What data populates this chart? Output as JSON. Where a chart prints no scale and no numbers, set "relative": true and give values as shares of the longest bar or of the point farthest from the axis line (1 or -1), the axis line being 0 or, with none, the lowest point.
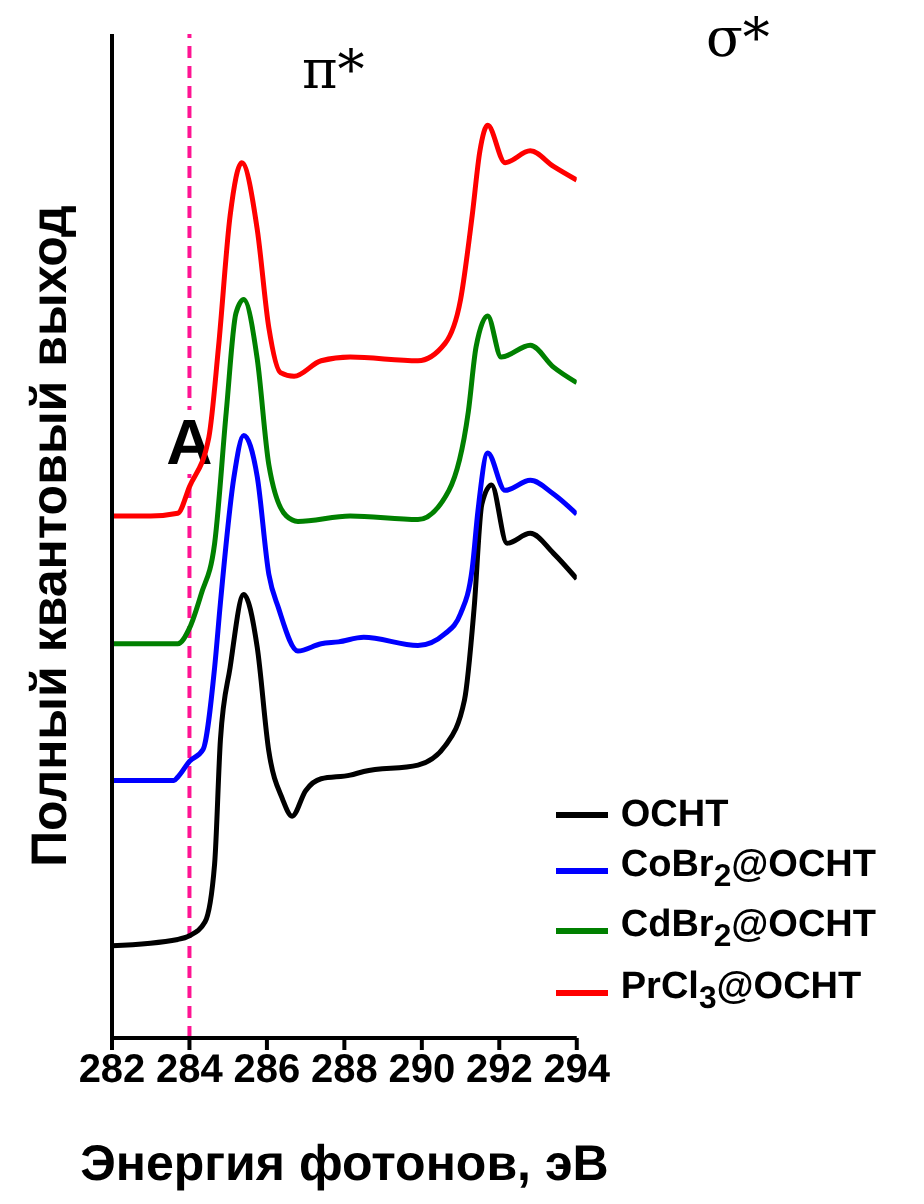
{
  "chart_data": {
    "type": "line",
    "xlabel": "Энергия фотонов, эВ",
    "ylabel": "Полный квантовый выход",
    "relative": true,
    "xlim": [
      282,
      294
    ],
    "xticks": [
      282,
      284,
      286,
      288,
      290,
      292,
      294
    ],
    "legend": "bottom right",
    "marker": "none",
    "line_style": "solid",
    "series": [
      {
        "name": "OCHT",
        "color": "#000000",
        "x": [
          282,
          283.7,
          284.0,
          284.4,
          284.65,
          284.8,
          285.05,
          285.4,
          285.75,
          286.05,
          286.4,
          286.65,
          287.0,
          287.4,
          288.15,
          288.5,
          289.9,
          290.6,
          291.1,
          291.35,
          291.55,
          291.8,
          292.2,
          292.8,
          293.4,
          294
        ],
        "values": [
          0.101,
          0.108,
          0.112,
          0.127,
          0.191,
          0.327,
          0.406,
          0.486,
          0.428,
          0.314,
          0.262,
          0.243,
          0.271,
          0.284,
          0.288,
          0.292,
          0.299,
          0.32,
          0.37,
          0.471,
          0.585,
          0.606,
          0.542,
          0.553,
          0.531,
          0.503
        ]
      },
      {
        "name": "CoBr$_{2}$@OCHT",
        "color": "#0000ff",
        "x": [
          282,
          283.6,
          283.7,
          284.0,
          284.35,
          284.65,
          284.8,
          285.15,
          285.4,
          285.75,
          286.05,
          286.3,
          286.8,
          287.4,
          287.85,
          288.5,
          289.9,
          290.6,
          291.0,
          291.3,
          291.45,
          291.7,
          292.15,
          292.8,
          293.4,
          294
        ],
        "values": [
          0.282,
          0.282,
          0.286,
          0.303,
          0.316,
          0.406,
          0.477,
          0.615,
          0.66,
          0.615,
          0.508,
          0.471,
          0.424,
          0.432,
          0.434,
          0.439,
          0.43,
          0.443,
          0.465,
          0.514,
          0.578,
          0.641,
          0.6,
          0.611,
          0.596,
          0.574
        ]
      },
      {
        "name": "CdBr$_{2}$@OCHT",
        "color": "#008000",
        "x": [
          282,
          283.7,
          284.0,
          284.3,
          284.65,
          284.95,
          285.2,
          285.4,
          285.75,
          286.05,
          286.5,
          286.8,
          288.15,
          289.9,
          290.7,
          291.2,
          291.4,
          291.7,
          292.05,
          292.8,
          293.4,
          294
        ],
        "values": [
          0.432,
          0.432,
          0.449,
          0.486,
          0.542,
          0.686,
          0.794,
          0.809,
          0.744,
          0.628,
          0.572,
          0.566,
          0.572,
          0.568,
          0.6,
          0.686,
          0.757,
          0.791,
          0.746,
          0.759,
          0.735,
          0.718
        ]
      },
      {
        "name": "PrCl$_{3}$@OCHT",
        "color": "#ff0000",
        "x": [
          282,
          283.0,
          283.7,
          284.0,
          284.5,
          284.75,
          285.05,
          285.35,
          285.75,
          286.05,
          286.35,
          286.7,
          287.4,
          288.15,
          289.9,
          290.6,
          291.0,
          291.3,
          291.5,
          291.7,
          292.15,
          292.8,
          293.4,
          294
        ],
        "values": [
          0.572,
          0.572,
          0.575,
          0.604,
          0.658,
          0.757,
          0.901,
          0.959,
          0.886,
          0.778,
          0.729,
          0.725,
          0.742,
          0.746,
          0.742,
          0.761,
          0.809,
          0.901,
          0.972,
          1.0,
          0.959,
          0.972,
          0.955,
          0.94
        ]
      }
    ],
    "ref_lines": [
      {
        "axis": "x",
        "value": 284,
        "label": "A",
        "color": "#ff1493",
        "line_style": "dashed"
      }
    ],
    "annotations": [
      "π*",
      "σ*"
    ]
  }
}
